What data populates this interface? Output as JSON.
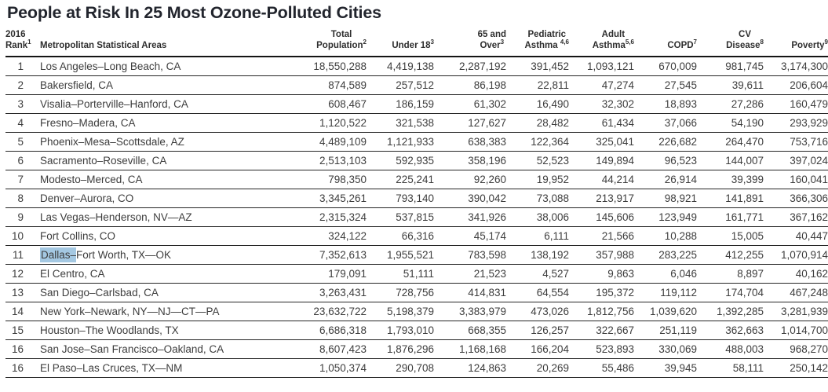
{
  "title": "People at Risk In 25 Most Ozone-Polluted Cities",
  "selection": {
    "highlight_color": "#a4c8e2",
    "selected_text": "Dallas–"
  },
  "table": {
    "columns": [
      {
        "key": "rank",
        "line1": "2016",
        "line2": "Rank",
        "sup": "1"
      },
      {
        "key": "metro-areas",
        "line1": "",
        "line2": "Metropolitan Statistical Areas",
        "sup": ""
      },
      {
        "key": "total-population",
        "line1": "Total",
        "line2": "Population",
        "sup": "2"
      },
      {
        "key": "under-18",
        "line1": "",
        "line2": "Under 18",
        "sup": "3"
      },
      {
        "key": "65-and-over",
        "line1": "65 and",
        "line2": "Over",
        "sup": "3"
      },
      {
        "key": "pediatric-asthma",
        "line1": "Pediatric",
        "line2": "Asthma ",
        "sup": "4,6"
      },
      {
        "key": "adult-asthma",
        "line1": "Adult",
        "line2": "Asthma",
        "sup": "5,6"
      },
      {
        "key": "copd",
        "line1": "",
        "line2": "COPD",
        "sup": "7"
      },
      {
        "key": "cv-disease",
        "line1": "CV",
        "line2": "Disease",
        "sup": "8"
      },
      {
        "key": "poverty",
        "line1": "",
        "line2": "Poverty",
        "sup": "9"
      }
    ],
    "rows": [
      {
        "rank": "1",
        "metro": "Los Angeles–Long Beach, CA",
        "values": [
          "18,550,288",
          "4,419,138",
          "2,287,192",
          "391,452",
          "1,093,121",
          "670,009",
          "981,745",
          "3,174,300"
        ]
      },
      {
        "rank": "2",
        "metro": "Bakersfield, CA",
        "values": [
          "874,589",
          "257,512",
          "86,198",
          "22,811",
          "47,274",
          "27,545",
          "39,611",
          "206,604"
        ]
      },
      {
        "rank": "3",
        "metro": "Visalia–Porterville–Hanford, CA",
        "values": [
          "608,467",
          "186,159",
          "61,302",
          "16,490",
          "32,302",
          "18,893",
          "27,286",
          "160,479"
        ]
      },
      {
        "rank": "4",
        "metro": "Fresno–Madera, CA",
        "values": [
          "1,120,522",
          "321,538",
          "127,627",
          "28,482",
          "61,434",
          "37,066",
          "54,190",
          "293,929"
        ]
      },
      {
        "rank": "5",
        "metro": "Phoenix–Mesa–Scottsdale, AZ",
        "values": [
          "4,489,109",
          "1,121,933",
          "638,383",
          "122,364",
          "325,041",
          "226,682",
          "264,470",
          "753,716"
        ]
      },
      {
        "rank": "6",
        "metro": "Sacramento–Roseville, CA",
        "values": [
          "2,513,103",
          "592,935",
          "358,196",
          "52,523",
          "149,894",
          "96,523",
          "144,007",
          "397,024"
        ]
      },
      {
        "rank": "7",
        "metro": "Modesto–Merced, CA",
        "values": [
          "798,350",
          "225,241",
          "92,260",
          "19,952",
          "44,214",
          "26,914",
          "39,399",
          "160,041"
        ]
      },
      {
        "rank": "8",
        "metro": "Denver–Aurora, CO",
        "values": [
          "3,345,261",
          "793,140",
          "390,042",
          "73,088",
          "213,917",
          "98,921",
          "141,891",
          "366,306"
        ]
      },
      {
        "rank": "9",
        "metro": "Las Vegas–Henderson, NV—AZ",
        "values": [
          "2,315,324",
          "537,815",
          "341,926",
          "38,006",
          "145,606",
          "123,949",
          "161,771",
          "367,162"
        ]
      },
      {
        "rank": "10",
        "metro": "Fort Collins, CO",
        "values": [
          "324,122",
          "66,316",
          "45,174",
          "6,111",
          "21,566",
          "10,288",
          "15,005",
          "40,447"
        ]
      },
      {
        "rank": "11",
        "metro_highlight": "Dallas–",
        "metro": "Fort Worth, TX—OK",
        "values": [
          "7,352,613",
          "1,955,521",
          "783,598",
          "138,192",
          "357,988",
          "283,225",
          "412,255",
          "1,070,914"
        ]
      },
      {
        "rank": "12",
        "metro": "El Centro, CA",
        "values": [
          "179,091",
          "51,111",
          "21,523",
          "4,527",
          "9,863",
          "6,046",
          "8,897",
          "40,162"
        ]
      },
      {
        "rank": "13",
        "metro": "San Diego–Carlsbad, CA",
        "values": [
          "3,263,431",
          "728,756",
          "414,831",
          "64,554",
          "195,372",
          "119,112",
          "174,704",
          "467,248"
        ]
      },
      {
        "rank": "14",
        "metro": "New York–Newark, NY—NJ—CT—PA",
        "values": [
          "23,632,722",
          "5,198,379",
          "3,383,979",
          "473,026",
          "1,812,756",
          "1,039,620",
          "1,392,285",
          "3,281,939"
        ]
      },
      {
        "rank": "15",
        "metro": "Houston–The Woodlands, TX",
        "values": [
          "6,686,318",
          "1,793,010",
          "668,355",
          "126,257",
          "322,667",
          "251,119",
          "362,663",
          "1,014,700"
        ]
      },
      {
        "rank": "16",
        "metro": "San Jose–San Francisco–Oakland, CA",
        "values": [
          "8,607,423",
          "1,876,296",
          "1,168,168",
          "166,204",
          "523,893",
          "330,069",
          "488,003",
          "968,270"
        ]
      },
      {
        "rank": "16",
        "metro": "El Paso–Las Cruces, TX—NM",
        "values": [
          "1,050,374",
          "290,708",
          "124,863",
          "20,269",
          "55,486",
          "39,945",
          "58,111",
          "250,142"
        ]
      }
    ]
  }
}
